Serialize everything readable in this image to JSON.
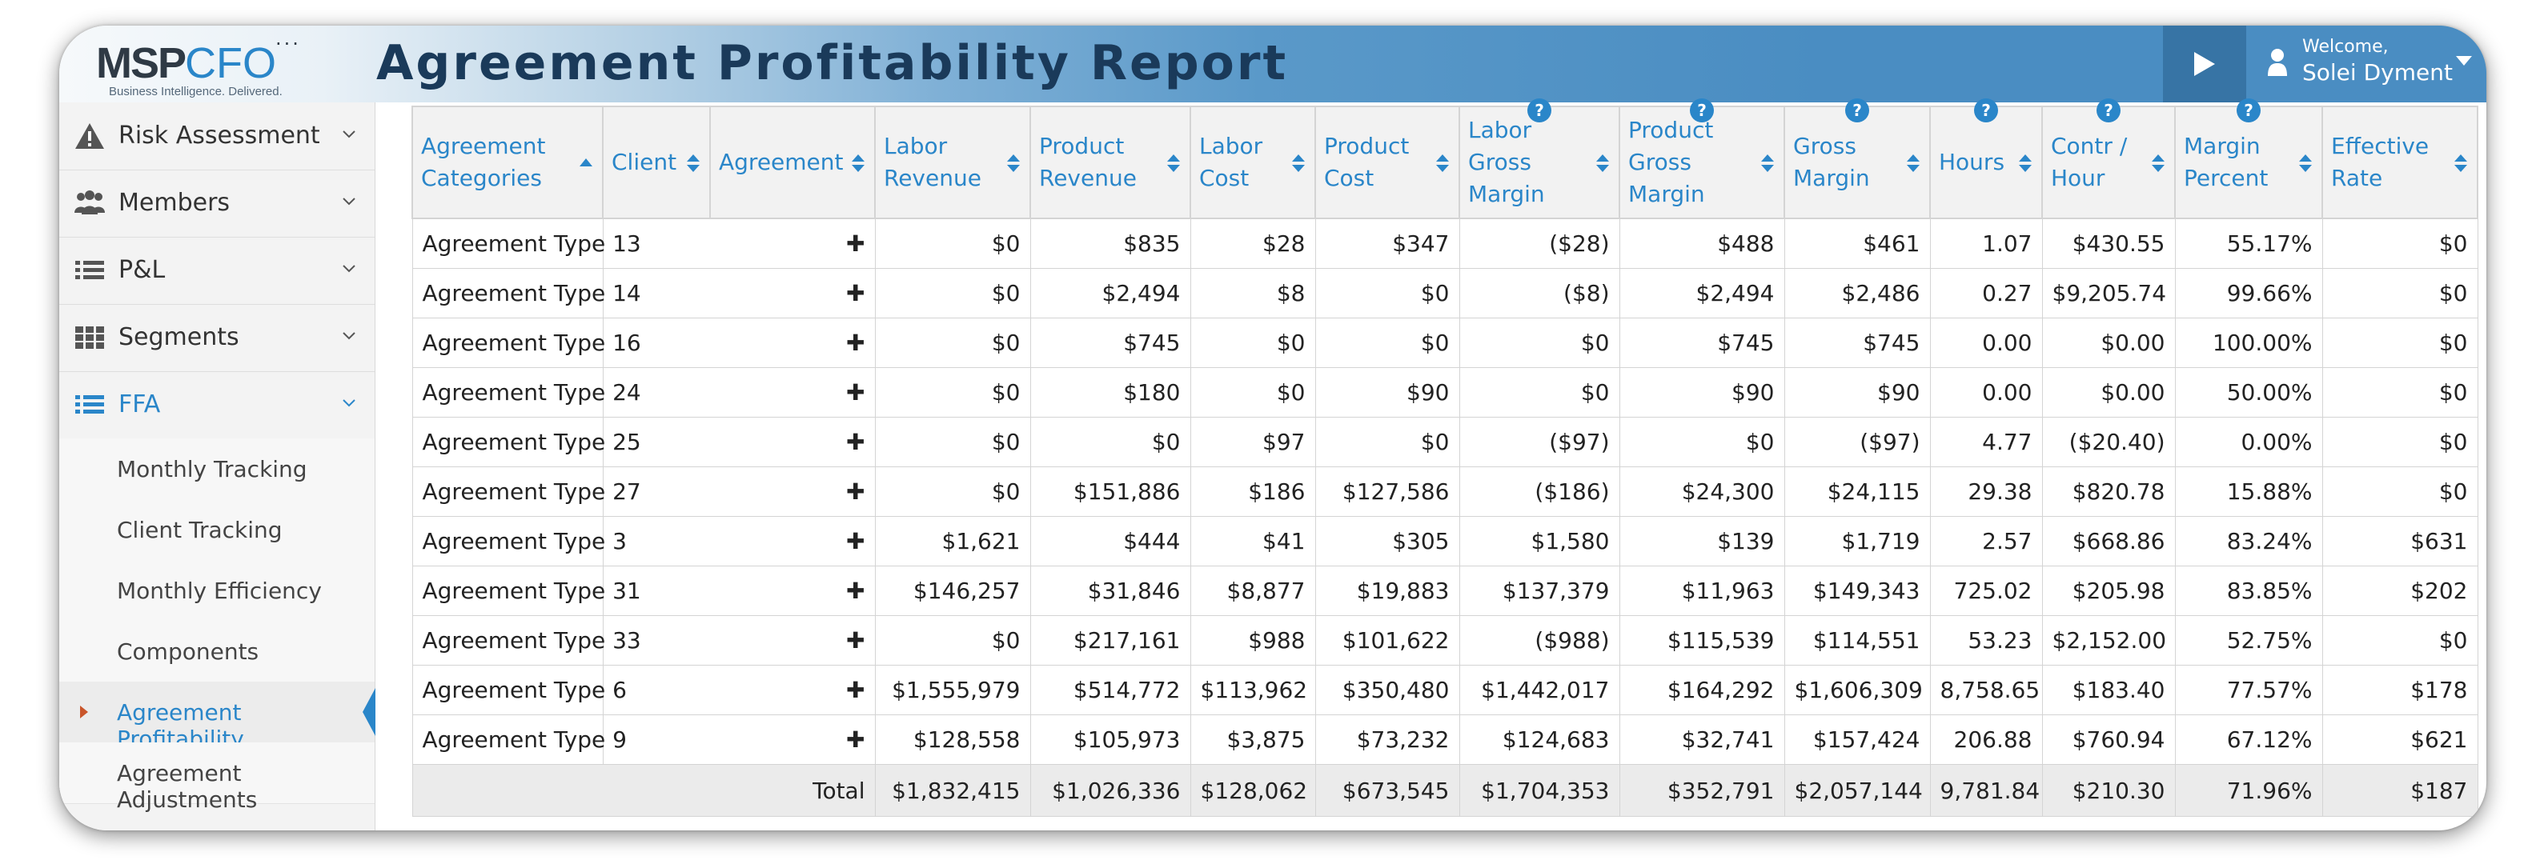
{
  "header": {
    "logo_text_a": "MSP",
    "logo_text_b": "CFO",
    "logo_dots": "...",
    "logo_tagline": "Business Intelligence. Delivered.",
    "title": "Agreement Profitability Report",
    "welcome": "Welcome,",
    "username": "Solei Dyment"
  },
  "colors": {
    "accent": "#2a86c9",
    "header_dark": "#3774a5",
    "title": "#1a3a5a",
    "marker": "#c9552a"
  },
  "sidebar": {
    "items": [
      {
        "label": "Risk Assessment",
        "icon": "warning-icon"
      },
      {
        "label": "Members",
        "icon": "users-icon"
      },
      {
        "label": "P&L",
        "icon": "list-icon"
      },
      {
        "label": "Segments",
        "icon": "grid-icon"
      },
      {
        "label": "FFA",
        "icon": "list-icon"
      }
    ],
    "subitems": [
      {
        "label": "Monthly Tracking"
      },
      {
        "label": "Client Tracking"
      },
      {
        "label": "Monthly Efficiency"
      },
      {
        "label": "Components"
      },
      {
        "label": "Agreement Profitability"
      },
      {
        "label": "Agreement Adjustments"
      }
    ]
  },
  "table": {
    "columns": [
      {
        "label": "Agreement Categories",
        "sort": "asc"
      },
      {
        "label": "Client",
        "sort": "both"
      },
      {
        "label": "Agreement",
        "sort": "both"
      },
      {
        "label": "Labor Revenue",
        "sort": "both"
      },
      {
        "label": "Product Revenue",
        "sort": "both"
      },
      {
        "label": "Labor Cost",
        "sort": "both"
      },
      {
        "label": "Product Cost",
        "sort": "both"
      },
      {
        "label": "Labor Gross Margin",
        "sort": "both",
        "help": true
      },
      {
        "label": "Product Gross Margin",
        "sort": "both",
        "help": true
      },
      {
        "label": "Gross Margin",
        "sort": "both",
        "help": true
      },
      {
        "label": "Hours",
        "sort": "both",
        "help": true
      },
      {
        "label": "Contr / Hour",
        "sort": "both",
        "help": true
      },
      {
        "label": "Margin Percent",
        "sort": "both",
        "help": true
      },
      {
        "label": "Effective Rate",
        "sort": "both"
      }
    ],
    "expand_glyph": "✚",
    "rows": [
      [
        "Agreement Type 13",
        "$0",
        "$835",
        "$28",
        "$347",
        "($28)",
        "$488",
        "$461",
        "1.07",
        "$430.55",
        "55.17%",
        "$0"
      ],
      [
        "Agreement Type 14",
        "$0",
        "$2,494",
        "$8",
        "$0",
        "($8)",
        "$2,494",
        "$2,486",
        "0.27",
        "$9,205.74",
        "99.66%",
        "$0"
      ],
      [
        "Agreement Type 16",
        "$0",
        "$745",
        "$0",
        "$0",
        "$0",
        "$745",
        "$745",
        "0.00",
        "$0.00",
        "100.00%",
        "$0"
      ],
      [
        "Agreement Type 24",
        "$0",
        "$180",
        "$0",
        "$90",
        "$0",
        "$90",
        "$90",
        "0.00",
        "$0.00",
        "50.00%",
        "$0"
      ],
      [
        "Agreement Type 25",
        "$0",
        "$0",
        "$97",
        "$0",
        "($97)",
        "$0",
        "($97)",
        "4.77",
        "($20.40)",
        "0.00%",
        "$0"
      ],
      [
        "Agreement Type 27",
        "$0",
        "$151,886",
        "$186",
        "$127,586",
        "($186)",
        "$24,300",
        "$24,115",
        "29.38",
        "$820.78",
        "15.88%",
        "$0"
      ],
      [
        "Agreement Type 3",
        "$1,621",
        "$444",
        "$41",
        "$305",
        "$1,580",
        "$139",
        "$1,719",
        "2.57",
        "$668.86",
        "83.24%",
        "$631"
      ],
      [
        "Agreement Type 31",
        "$146,257",
        "$31,846",
        "$8,877",
        "$19,883",
        "$137,379",
        "$11,963",
        "$149,343",
        "725.02",
        "$205.98",
        "83.85%",
        "$202"
      ],
      [
        "Agreement Type 33",
        "$0",
        "$217,161",
        "$988",
        "$101,622",
        "($988)",
        "$115,539",
        "$114,551",
        "53.23",
        "$2,152.00",
        "52.75%",
        "$0"
      ],
      [
        "Agreement Type 6",
        "$1,555,979",
        "$514,772",
        "$113,962",
        "$350,480",
        "$1,442,017",
        "$164,292",
        "$1,606,309",
        "8,758.65",
        "$183.40",
        "77.57%",
        "$178"
      ],
      [
        "Agreement Type 9",
        "$128,558",
        "$105,973",
        "$3,875",
        "$73,232",
        "$124,683",
        "$32,741",
        "$157,424",
        "206.88",
        "$760.94",
        "67.12%",
        "$621"
      ]
    ],
    "total": {
      "label": "Total",
      "values": [
        "$1,832,415",
        "$1,026,336",
        "$128,062",
        "$673,545",
        "$1,704,353",
        "$352,791",
        "$2,057,144",
        "9,781.84",
        "$210.30",
        "71.96%",
        "$187"
      ]
    }
  }
}
